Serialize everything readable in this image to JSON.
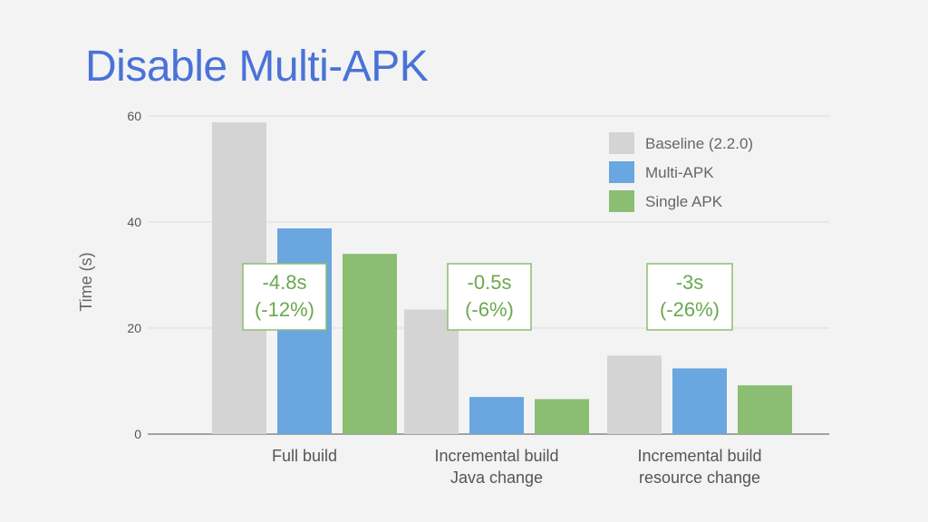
{
  "slide": {
    "title": "Disable Multi-APK"
  },
  "chart_data": {
    "type": "bar",
    "title": "",
    "xlabel": "",
    "ylabel": "Time (s)",
    "ylim": [
      0,
      60
    ],
    "yticks": [
      0,
      20,
      40,
      60
    ],
    "grid": true,
    "legend_position": "top-right",
    "categories": [
      [
        "Full build"
      ],
      [
        "Incremental build",
        "Java change"
      ],
      [
        "Incremental build",
        "resource change"
      ]
    ],
    "series": [
      {
        "name": "Baseline (2.2.0)",
        "color": "#d4d4d4",
        "values": [
          58.8,
          23.5,
          14.8
        ]
      },
      {
        "name": "Multi-APK",
        "color": "#6aa6e0",
        "values": [
          38.8,
          7.0,
          12.4
        ]
      },
      {
        "name": "Single APK",
        "color": "#8bbd73",
        "values": [
          34.0,
          6.6,
          9.2
        ]
      }
    ],
    "annotations": [
      {
        "category": 0,
        "lines": [
          "-4.8s",
          "(-12%)"
        ]
      },
      {
        "category": 1,
        "lines": [
          "-0.5s",
          "(-6%)"
        ]
      },
      {
        "category": 2,
        "lines": [
          "-3s",
          "(-26%)"
        ]
      }
    ]
  }
}
